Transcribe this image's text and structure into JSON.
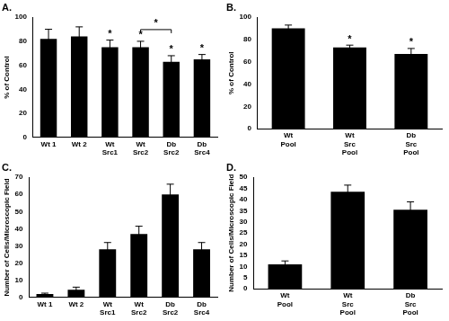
{
  "chart_data": [
    {
      "type": "bar",
      "title": "A.",
      "y_label": "% of Control",
      "categories": [
        "Wt 1",
        "Wt 2",
        "Wt Src1",
        "Wt Src2",
        "Db Src2",
        "Db Src4"
      ],
      "values": [
        82,
        84,
        75,
        75,
        63,
        65
      ],
      "errors": [
        8,
        8,
        6,
        5,
        5,
        4
      ],
      "color": "#000000",
      "ylim": [
        0,
        100
      ],
      "yticks": [
        0,
        20,
        40,
        60,
        80,
        100
      ],
      "grid": false,
      "annotations": [
        {
          "text": "*",
          "category": "Wt Src1"
        },
        {
          "text": "*",
          "category": "Wt Src2"
        },
        {
          "text": "*",
          "category": "Db Src2"
        },
        {
          "text": "*",
          "category": "Db Src4"
        },
        {
          "text": "*",
          "from": "Wt Src2",
          "to": "Db Src2"
        }
      ]
    },
    {
      "type": "bar",
      "title": "B.",
      "y_label": "% of Control",
      "categories": [
        "Wt Pool",
        "Wt Src Pool",
        "Db Src Pool"
      ],
      "values": [
        90,
        73,
        67
      ],
      "errors": [
        3,
        2,
        5
      ],
      "color": "#000000",
      "ylim": [
        0,
        100
      ],
      "yticks": [
        0,
        20,
        40,
        60,
        80,
        100
      ],
      "grid": false,
      "annotations": [
        {
          "text": "*",
          "category": "Wt Src Pool"
        },
        {
          "text": "*",
          "category": "Db Src Pool"
        }
      ]
    },
    {
      "type": "bar",
      "title": "C.",
      "y_label": "Number of Cells/Microscopic Field",
      "categories": [
        "Wt 1",
        "Wt 2",
        "Wt Src1",
        "Wt Src2",
        "Db Src2",
        "Db Src4"
      ],
      "values": [
        2,
        4.5,
        28,
        37,
        60,
        28
      ],
      "errors": [
        0.5,
        1.5,
        4,
        4.5,
        6,
        4
      ],
      "color": "#000000",
      "ylim": [
        0,
        70
      ],
      "yticks": [
        0,
        10,
        20,
        30,
        40,
        50,
        60,
        70
      ],
      "grid": false
    },
    {
      "type": "bar",
      "title": "D.",
      "y_label": "Number of Cells/Microscopic Field",
      "categories": [
        "Wt Pool",
        "Wt Src Pool",
        "Db Src Pool"
      ],
      "values": [
        11,
        43.5,
        35.5
      ],
      "errors": [
        1.5,
        3,
        3.5
      ],
      "color": "#000000",
      "ylim": [
        0,
        50
      ],
      "yticks": [
        0,
        5,
        10,
        15,
        20,
        25,
        30,
        35,
        40,
        45,
        50
      ],
      "grid": false
    }
  ]
}
